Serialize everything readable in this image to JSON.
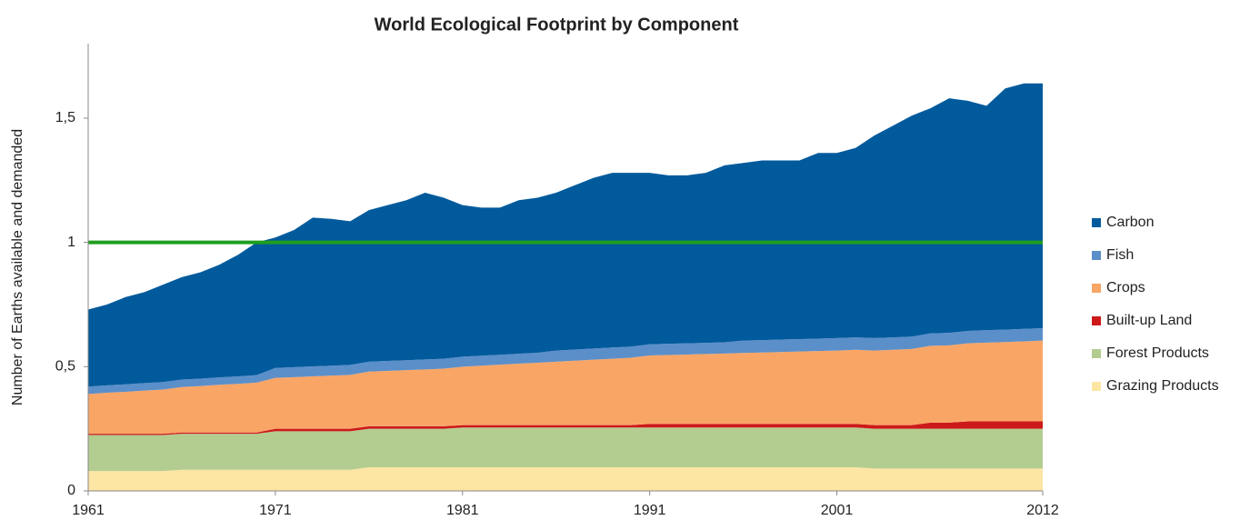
{
  "chart_data": {
    "type": "stacked_area",
    "title": "World Ecological Footprint by Component",
    "ylabel": "Number of Earths available and demanded",
    "x": [
      1961,
      1962,
      1963,
      1964,
      1965,
      1966,
      1967,
      1968,
      1969,
      1970,
      1971,
      1972,
      1973,
      1974,
      1975,
      1976,
      1977,
      1978,
      1979,
      1980,
      1981,
      1982,
      1983,
      1984,
      1985,
      1986,
      1987,
      1988,
      1989,
      1990,
      1991,
      1992,
      1993,
      1994,
      1995,
      1996,
      1997,
      1998,
      1999,
      2000,
      2001,
      2002,
      2003,
      2004,
      2005,
      2006,
      2007,
      2008,
      2009,
      2010,
      2011,
      2012
    ],
    "xlim": [
      1961,
      2012
    ],
    "xticks": [
      1961,
      1971,
      1981,
      1991,
      2001,
      2012
    ],
    "ylim": [
      0,
      1.8
    ],
    "yticks": [
      0,
      {
        "value": 0.5,
        "label": "0,5"
      },
      1,
      {
        "value": 1.5,
        "label": "1,5"
      }
    ],
    "grid": false,
    "legend": "right",
    "reference_line": {
      "value": 1,
      "color": "#1f9e1f"
    },
    "series": [
      {
        "name": "Grazing Products",
        "color": "#fde5a3",
        "values": [
          0.08,
          0.08,
          0.08,
          0.08,
          0.08,
          0.085,
          0.085,
          0.085,
          0.085,
          0.085,
          0.085,
          0.085,
          0.085,
          0.085,
          0.085,
          0.095,
          0.095,
          0.095,
          0.095,
          0.095,
          0.095,
          0.095,
          0.095,
          0.095,
          0.095,
          0.095,
          0.095,
          0.095,
          0.095,
          0.095,
          0.095,
          0.095,
          0.095,
          0.095,
          0.095,
          0.095,
          0.095,
          0.095,
          0.095,
          0.095,
          0.095,
          0.095,
          0.09,
          0.09,
          0.09,
          0.09,
          0.09,
          0.09,
          0.09,
          0.09,
          0.09,
          0.09
        ]
      },
      {
        "name": "Forest Products",
        "color": "#b3cd90",
        "values": [
          0.145,
          0.145,
          0.145,
          0.145,
          0.145,
          0.145,
          0.145,
          0.145,
          0.145,
          0.145,
          0.155,
          0.155,
          0.155,
          0.155,
          0.155,
          0.155,
          0.155,
          0.155,
          0.155,
          0.155,
          0.16,
          0.16,
          0.16,
          0.16,
          0.16,
          0.16,
          0.16,
          0.16,
          0.16,
          0.16,
          0.16,
          0.16,
          0.16,
          0.16,
          0.16,
          0.16,
          0.16,
          0.16,
          0.16,
          0.16,
          0.16,
          0.16,
          0.16,
          0.16,
          0.16,
          0.16,
          0.16,
          0.16,
          0.16,
          0.16,
          0.16,
          0.16
        ]
      },
      {
        "name": "Built-up Land",
        "color": "#cc1a1a",
        "values": [
          0.005,
          0.005,
          0.005,
          0.005,
          0.005,
          0.005,
          0.005,
          0.005,
          0.005,
          0.005,
          0.01,
          0.01,
          0.01,
          0.01,
          0.01,
          0.01,
          0.01,
          0.01,
          0.01,
          0.01,
          0.01,
          0.01,
          0.01,
          0.01,
          0.01,
          0.01,
          0.01,
          0.01,
          0.01,
          0.01,
          0.015,
          0.015,
          0.015,
          0.015,
          0.015,
          0.015,
          0.015,
          0.015,
          0.015,
          0.015,
          0.015,
          0.015,
          0.015,
          0.015,
          0.015,
          0.025,
          0.025,
          0.03,
          0.03,
          0.03,
          0.03,
          0.03
        ]
      },
      {
        "name": "Crops",
        "color": "#f9a566",
        "values": [
          0.16,
          0.165,
          0.169,
          0.174,
          0.178,
          0.183,
          0.187,
          0.192,
          0.196,
          0.201,
          0.205,
          0.208,
          0.211,
          0.214,
          0.217,
          0.22,
          0.223,
          0.226,
          0.229,
          0.232,
          0.235,
          0.239,
          0.243,
          0.247,
          0.251,
          0.255,
          0.259,
          0.263,
          0.267,
          0.271,
          0.275,
          0.277,
          0.279,
          0.281,
          0.283,
          0.285,
          0.287,
          0.289,
          0.291,
          0.293,
          0.295,
          0.298,
          0.3,
          0.303,
          0.306,
          0.309,
          0.311,
          0.314,
          0.317,
          0.319,
          0.322,
          0.325
        ]
      },
      {
        "name": "Fish",
        "color": "#5b8fc9",
        "values": [
          0.03,
          0.03,
          0.03,
          0.03,
          0.03,
          0.03,
          0.03,
          0.03,
          0.03,
          0.03,
          0.04,
          0.04,
          0.04,
          0.04,
          0.04,
          0.04,
          0.04,
          0.04,
          0.04,
          0.04,
          0.04,
          0.04,
          0.04,
          0.04,
          0.04,
          0.045,
          0.045,
          0.045,
          0.045,
          0.045,
          0.045,
          0.045,
          0.045,
          0.045,
          0.045,
          0.05,
          0.05,
          0.05,
          0.05,
          0.05,
          0.05,
          0.05,
          0.05,
          0.05,
          0.05,
          0.05,
          0.05,
          0.05,
          0.05,
          0.05,
          0.05,
          0.05
        ]
      },
      {
        "name": "Carbon",
        "color": "#005a9c",
        "values": [
          0.31,
          0.325,
          0.351,
          0.366,
          0.392,
          0.412,
          0.428,
          0.453,
          0.489,
          0.534,
          0.525,
          0.552,
          0.599,
          0.591,
          0.578,
          0.61,
          0.627,
          0.644,
          0.671,
          0.648,
          0.61,
          0.596,
          0.592,
          0.618,
          0.624,
          0.635,
          0.661,
          0.687,
          0.703,
          0.699,
          0.69,
          0.678,
          0.676,
          0.684,
          0.712,
          0.715,
          0.723,
          0.721,
          0.719,
          0.747,
          0.745,
          0.762,
          0.815,
          0.852,
          0.889,
          0.906,
          0.944,
          0.926,
          0.903,
          0.971,
          0.988,
          0.985
        ]
      }
    ]
  }
}
